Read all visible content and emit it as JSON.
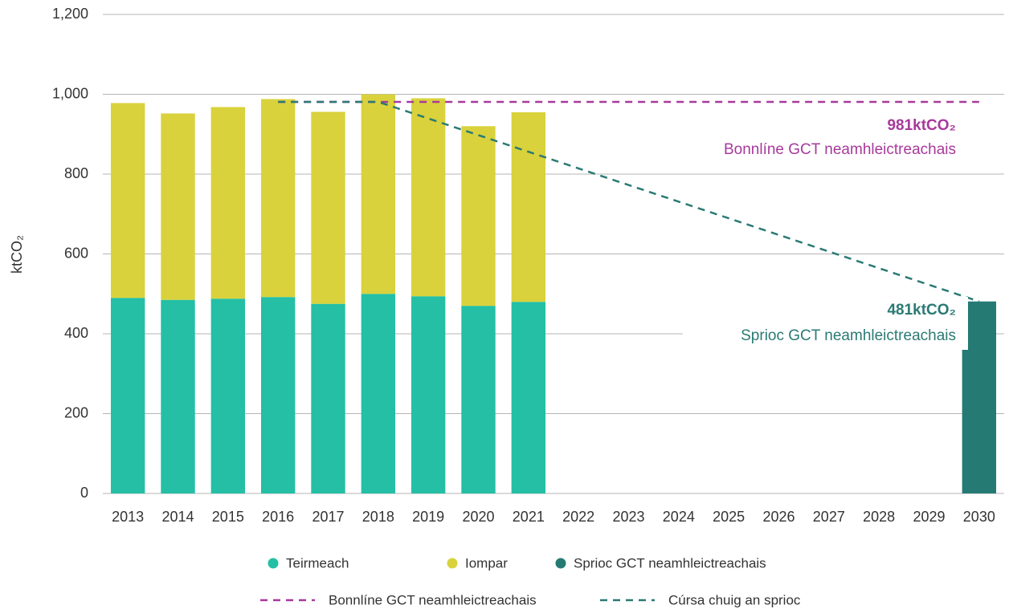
{
  "chart_data": {
    "type": "bar",
    "stacked": true,
    "y_label": "ktCO₂",
    "categories": [
      "2013",
      "2014",
      "2015",
      "2016",
      "2017",
      "2018",
      "2019",
      "2020",
      "2021",
      "2022",
      "2023",
      "2024",
      "2025",
      "2026",
      "2027",
      "2028",
      "2029",
      "2030"
    ],
    "series": [
      {
        "name": "Teirmeach",
        "color": "#24bfa5",
        "values": [
          490,
          485,
          488,
          492,
          475,
          500,
          494,
          470,
          480,
          null,
          null,
          null,
          null,
          null,
          null,
          null,
          null,
          null
        ]
      },
      {
        "name": "Iompar",
        "color": "#d9d23c",
        "values": [
          488,
          467,
          480,
          496,
          481,
          500,
          496,
          450,
          475,
          null,
          null,
          null,
          null,
          null,
          null,
          null,
          null,
          null
        ]
      },
      {
        "name": "Sprioc GCT neamhleictreachais",
        "color": "#267a74",
        "values": [
          null,
          null,
          null,
          null,
          null,
          null,
          null,
          null,
          null,
          null,
          null,
          null,
          null,
          null,
          null,
          null,
          null,
          481
        ]
      }
    ],
    "lines": [
      {
        "name": "Bonnlíne GCT neamhleictreachais",
        "color": "#a7399b",
        "categories": [
          "2016",
          "2030"
        ],
        "values": [
          981,
          981
        ]
      },
      {
        "name": "Cúrsa chuig an sprioc",
        "color": "#2a7a74",
        "categories": [
          "2016",
          "2018",
          "2030"
        ],
        "values": [
          981,
          981,
          481
        ]
      }
    ],
    "annotations": [
      {
        "text": "981ktCO₂",
        "color": "#a7399b",
        "bold": true
      },
      {
        "text": "Bonnlíne GCT neamhleictreachais",
        "color": "#a7399b",
        "bold": false
      },
      {
        "text": "481ktCO₂",
        "color": "#2a7a74",
        "bold": true
      },
      {
        "text": "Sprioc GCT neamhleictreachais",
        "color": "#2a7a74",
        "bold": false
      }
    ],
    "ylim": [
      0,
      1200
    ],
    "yticks": [
      0,
      200,
      400,
      600,
      800,
      {
        "value": 1000,
        "label": "1,000"
      },
      {
        "value": 1200,
        "label": "1,200"
      }
    ],
    "grid": true
  }
}
